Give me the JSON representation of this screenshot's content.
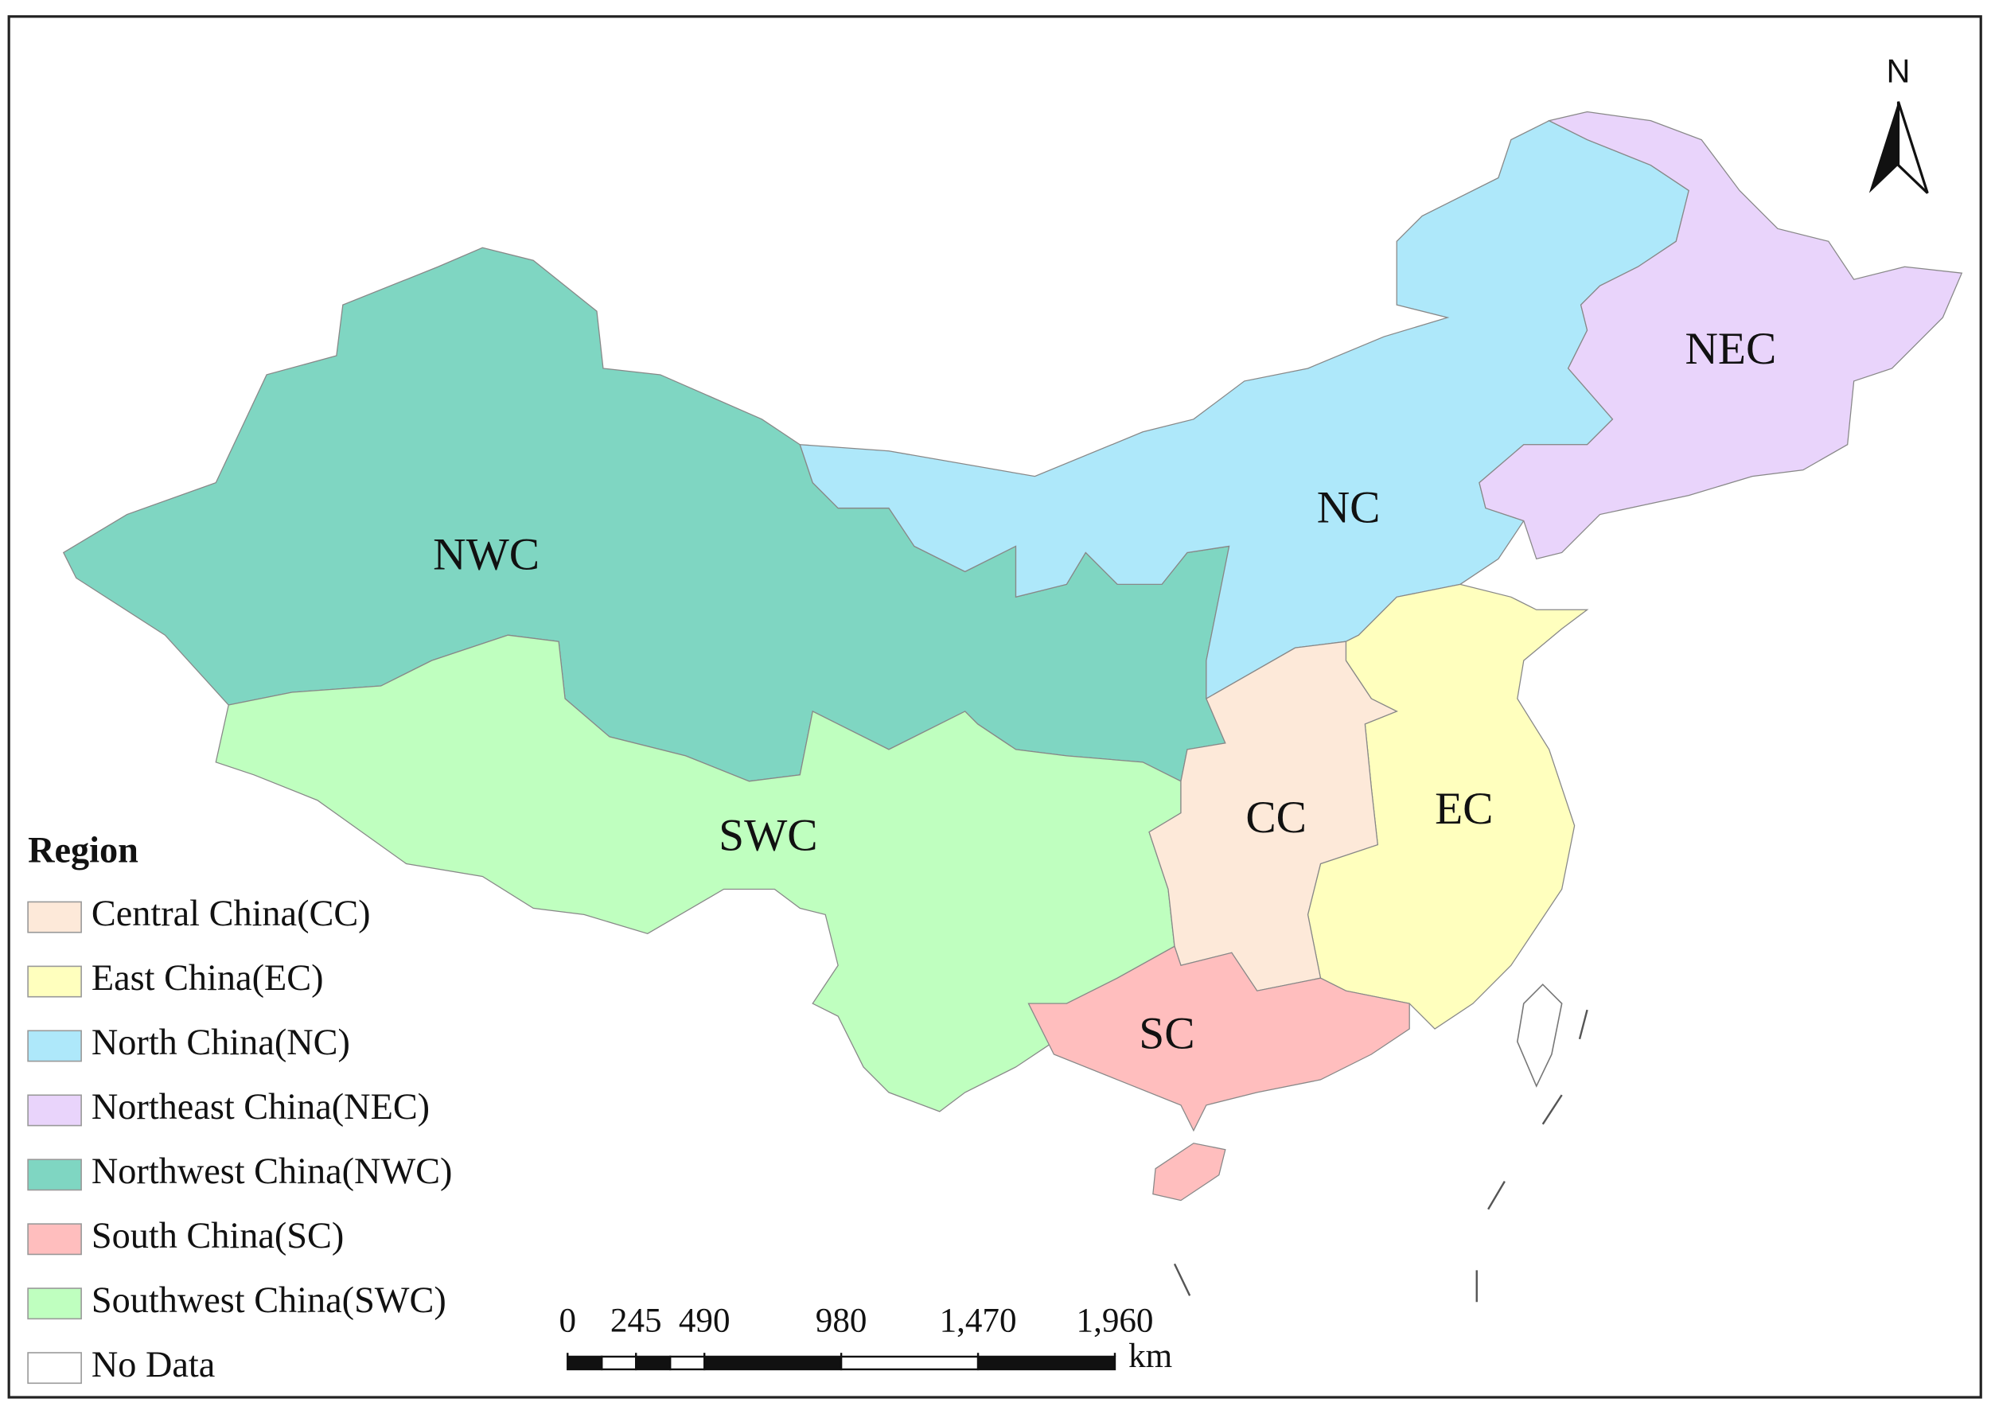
{
  "map": {
    "north_label": "N",
    "regions": [
      {
        "label": "NWC",
        "color": "#7fd6c2"
      },
      {
        "label": "SWC",
        "color": "#bfffbf"
      },
      {
        "label": "NC",
        "color": "#aee8fa"
      },
      {
        "label": "NEC",
        "color": "#e9d4fb"
      },
      {
        "label": "EC",
        "color": "#ffffbe"
      },
      {
        "label": "CC",
        "color": "#fde9d9"
      },
      {
        "label": "SC",
        "color": "#ffbebe"
      }
    ],
    "legend": {
      "title": "Region",
      "items": [
        {
          "label": "Central China(CC)",
          "color": "#fde9d9"
        },
        {
          "label": "East China(EC)",
          "color": "#ffffbe"
        },
        {
          "label": "North China(NC)",
          "color": "#aee8fa"
        },
        {
          "label": "Northeast China(NEC)",
          "color": "#e9d4fb"
        },
        {
          "label": "Northwest China(NWC)",
          "color": "#7fd6c2"
        },
        {
          "label": "South China(SC)",
          "color": "#ffbebe"
        },
        {
          "label": "Southwest China(SWC)",
          "color": "#bfffbf"
        },
        {
          "label": "No Data",
          "color": "#ffffff"
        }
      ]
    },
    "scale_bar": {
      "unit": "km",
      "ticks": [
        0,
        245,
        490,
        980,
        {
          "value": 1470,
          "label": "1,470"
        },
        {
          "value": 1960,
          "label": "1,960"
        }
      ]
    }
  }
}
